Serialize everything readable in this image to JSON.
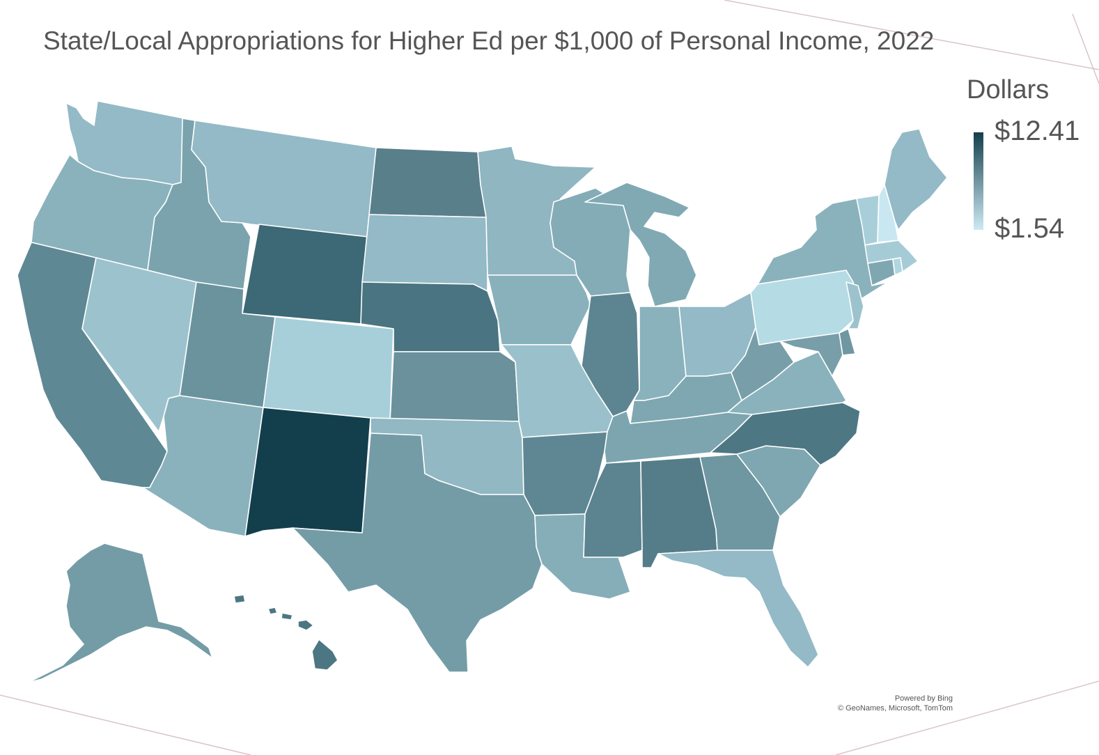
{
  "title": "State/Local Appropriations for Higher Ed per $1,000 of Personal Income, 2022",
  "legend": {
    "title": "Dollars",
    "max_label": "$12.41",
    "min_label": "$1.54",
    "max_color": "#133f4d",
    "min_color": "#cdeaf3"
  },
  "attribution": {
    "line1": "Powered by Bing",
    "line2": "© GeoNames, Microsoft, TomTom"
  },
  "colors": {
    "border": "#ffffff",
    "frame_line": "#d8c4cc"
  },
  "states": [
    {
      "code": "WA",
      "fill": "#93bac6"
    },
    {
      "code": "OR",
      "fill": "#8ab2bd"
    },
    {
      "code": "CA",
      "fill": "#5e8894"
    },
    {
      "code": "NV",
      "fill": "#9cc3cd"
    },
    {
      "code": "ID",
      "fill": "#7aa3ad"
    },
    {
      "code": "MT",
      "fill": "#93bac6"
    },
    {
      "code": "WY",
      "fill": "#3d6875"
    },
    {
      "code": "UT",
      "fill": "#6a939e"
    },
    {
      "code": "AZ",
      "fill": "#8ab2bd"
    },
    {
      "code": "CO",
      "fill": "#a7cfd9"
    },
    {
      "code": "NM",
      "fill": "#133f4d"
    },
    {
      "code": "ND",
      "fill": "#597f8b"
    },
    {
      "code": "SD",
      "fill": "#93bac6"
    },
    {
      "code": "NE",
      "fill": "#4a7481"
    },
    {
      "code": "KS",
      "fill": "#6a919c"
    },
    {
      "code": "OK",
      "fill": "#91b8c3"
    },
    {
      "code": "TX",
      "fill": "#739ca7"
    },
    {
      "code": "MN",
      "fill": "#8fb6c1"
    },
    {
      "code": "IA",
      "fill": "#89b1bc"
    },
    {
      "code": "MO",
      "fill": "#9ac1cb"
    },
    {
      "code": "AR",
      "fill": "#5f8793"
    },
    {
      "code": "LA",
      "fill": "#86aeb9"
    },
    {
      "code": "WI",
      "fill": "#84acb7"
    },
    {
      "code": "IL",
      "fill": "#5d8591"
    },
    {
      "code": "MI",
      "fill": "#80a9b3"
    },
    {
      "code": "IN",
      "fill": "#8ab2bd"
    },
    {
      "code": "OH",
      "fill": "#93bac6"
    },
    {
      "code": "KY",
      "fill": "#7ea7b1"
    },
    {
      "code": "TN",
      "fill": "#7ca5af"
    },
    {
      "code": "MS",
      "fill": "#5b8390"
    },
    {
      "code": "AL",
      "fill": "#557d89"
    },
    {
      "code": "GA",
      "fill": "#6f97a2"
    },
    {
      "code": "FL",
      "fill": "#93bac6"
    },
    {
      "code": "SC",
      "fill": "#7ea7b1"
    },
    {
      "code": "NC",
      "fill": "#4e7784"
    },
    {
      "code": "VA",
      "fill": "#8ab2bd"
    },
    {
      "code": "WV",
      "fill": "#789fa9"
    },
    {
      "code": "MD",
      "fill": "#789fa9"
    },
    {
      "code": "DE",
      "fill": "#6f97a2"
    },
    {
      "code": "PA",
      "fill": "#b5dbe5"
    },
    {
      "code": "NY",
      "fill": "#8ab2bd"
    },
    {
      "code": "NJ",
      "fill": "#9cc3cd"
    },
    {
      "code": "CT",
      "fill": "#7ea7b1"
    },
    {
      "code": "RI",
      "fill": "#b0d6df"
    },
    {
      "code": "MA",
      "fill": "#a5ccd6"
    },
    {
      "code": "VT",
      "fill": "#a8cfd9"
    },
    {
      "code": "NH",
      "fill": "#c9e7f0"
    },
    {
      "code": "ME",
      "fill": "#93bac6"
    },
    {
      "code": "AK",
      "fill": "#749ca7"
    },
    {
      "code": "HI",
      "fill": "#4d7683"
    }
  ]
}
